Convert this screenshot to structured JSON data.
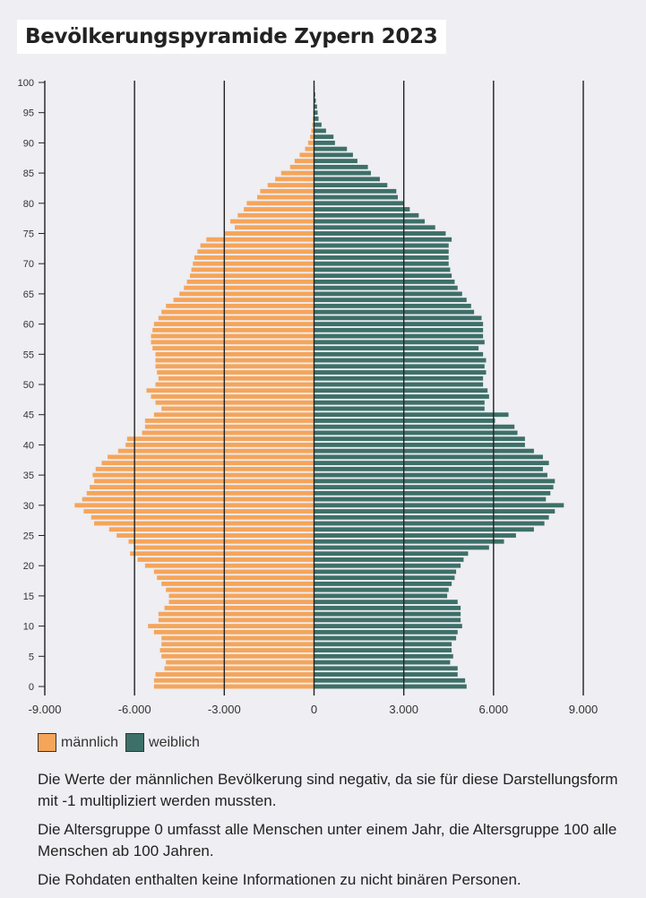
{
  "title": "Bevölkerungspyramide Zypern 2023",
  "colors": {
    "male": "#f5a55a",
    "female": "#3d7068",
    "grid": "#222222",
    "background": "#eeeef3"
  },
  "legend": {
    "male": "männlich",
    "female": "weiblich"
  },
  "notes": [
    "Die Werte der männlichen Bevölkerung sind negativ, da sie für diese Darstellungsform mit -1 multipliziert werden mussten.",
    "Die Altersgruppe 0 umfasst alle Menschen unter einem Jahr, die Altersgruppe 100 alle Menschen ab 100 Jahren.",
    "Die Rohdaten enthalten keine Informationen zu nicht binären Personen."
  ],
  "chart_data": {
    "type": "bar",
    "orientation": "horizontal",
    "xlim": [
      -9000,
      9000
    ],
    "xticks": [
      -9000,
      -6000,
      -3000,
      0,
      3000,
      6000,
      9000
    ],
    "xtick_labels": [
      "-9.000",
      "-6.000",
      "-3.000",
      "0",
      "3.000",
      "6.000",
      "9.000"
    ],
    "yticks": [
      0,
      5,
      10,
      15,
      20,
      25,
      30,
      35,
      40,
      45,
      50,
      55,
      60,
      65,
      70,
      75,
      80,
      85,
      90,
      95,
      100
    ],
    "categories": [
      0,
      1,
      2,
      3,
      4,
      5,
      6,
      7,
      8,
      9,
      10,
      11,
      12,
      13,
      14,
      15,
      16,
      17,
      18,
      19,
      20,
      21,
      22,
      23,
      24,
      25,
      26,
      27,
      28,
      29,
      30,
      31,
      32,
      33,
      34,
      35,
      36,
      37,
      38,
      39,
      40,
      41,
      42,
      43,
      44,
      45,
      46,
      47,
      48,
      49,
      50,
      51,
      52,
      53,
      54,
      55,
      56,
      57,
      58,
      59,
      60,
      61,
      62,
      63,
      64,
      65,
      66,
      67,
      68,
      69,
      70,
      71,
      72,
      73,
      74,
      75,
      76,
      77,
      78,
      79,
      80,
      81,
      82,
      83,
      84,
      85,
      86,
      87,
      88,
      89,
      90,
      91,
      92,
      93,
      94,
      95,
      96,
      97,
      98,
      99,
      100
    ],
    "series": [
      {
        "name": "männlich",
        "values": [
          -5350,
          -5350,
          -5300,
          -5000,
          -4950,
          -5100,
          -5150,
          -5100,
          -5100,
          -5350,
          -5550,
          -5200,
          -5200,
          -5000,
          -4850,
          -4850,
          -4950,
          -5100,
          -5250,
          -5350,
          -5650,
          -5900,
          -6150,
          -6000,
          -6200,
          -6600,
          -6850,
          -7350,
          -7450,
          -7700,
          -8000,
          -7750,
          -7600,
          -7500,
          -7350,
          -7400,
          -7300,
          -7100,
          -6900,
          -6550,
          -6300,
          -6250,
          -5750,
          -5650,
          -5650,
          -5350,
          -5100,
          -5300,
          -5450,
          -5600,
          -5300,
          -5200,
          -5250,
          -5300,
          -5300,
          -5300,
          -5400,
          -5450,
          -5450,
          -5400,
          -5350,
          -5200,
          -5100,
          -4950,
          -4700,
          -4500,
          -4350,
          -4250,
          -4150,
          -4100,
          -4050,
          -4000,
          -3900,
          -3800,
          -3600,
          -3000,
          -2650,
          -2800,
          -2550,
          -2350,
          -2250,
          -1900,
          -1800,
          -1550,
          -1300,
          -1100,
          -800,
          -650,
          -480,
          -300,
          -200,
          -130,
          -90,
          -60,
          -40,
          -30,
          -20,
          -10,
          -5,
          -3,
          -2
        ]
      },
      {
        "name": "weiblich",
        "values": [
          5100,
          5050,
          4800,
          4800,
          4550,
          4650,
          4600,
          4600,
          4750,
          4800,
          4950,
          4900,
          4900,
          4900,
          4800,
          4450,
          4500,
          4600,
          4700,
          4750,
          4900,
          5000,
          5150,
          5850,
          6350,
          6750,
          7350,
          7700,
          7850,
          8050,
          8350,
          7750,
          7900,
          8000,
          8050,
          7800,
          7650,
          7850,
          7650,
          7350,
          7050,
          7050,
          6800,
          6700,
          6050,
          6500,
          5700,
          5700,
          5850,
          5800,
          5650,
          5650,
          5750,
          5700,
          5750,
          5650,
          5500,
          5700,
          5650,
          5650,
          5650,
          5600,
          5350,
          5250,
          5100,
          4950,
          4800,
          4700,
          4600,
          4550,
          4500,
          4500,
          4500,
          4500,
          4600,
          4400,
          4050,
          3700,
          3500,
          3200,
          3000,
          2800,
          2750,
          2450,
          2200,
          1900,
          1800,
          1450,
          1300,
          1100,
          700,
          650,
          400,
          250,
          150,
          120,
          100,
          60,
          40,
          20,
          10
        ]
      }
    ]
  }
}
